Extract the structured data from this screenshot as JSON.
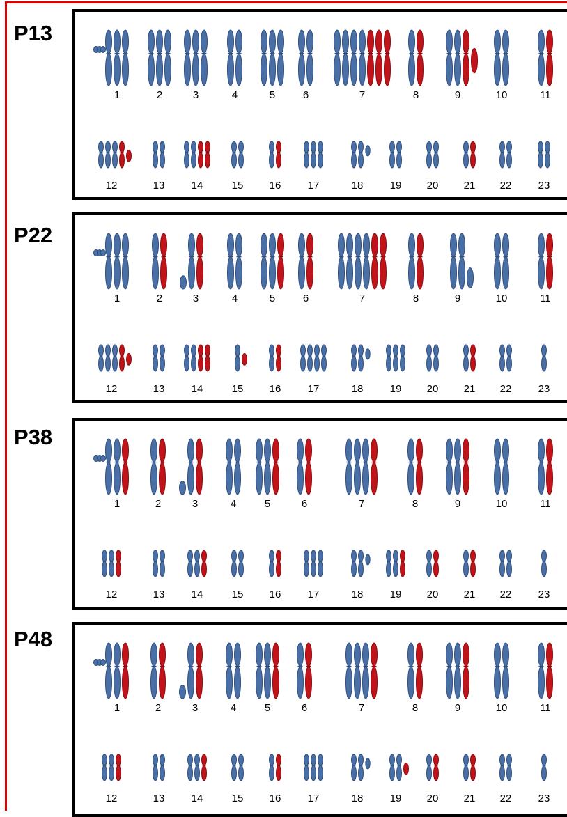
{
  "colors": {
    "border_red": "#e00000",
    "chromosome_blue": "#4a6fa5",
    "chromosome_blue_stroke": "#2f4f80",
    "chromosome_red": "#c0141a",
    "chromosome_red_stroke": "#8a0d12",
    "box_border": "#000000"
  },
  "panels": [
    {
      "label": "P13",
      "rows": [
        [
          {
            "n": "1",
            "full": [
              1,
              1,
              1
            ],
            "dots": true
          },
          {
            "n": "2",
            "full": [
              1,
              1,
              1
            ]
          },
          {
            "n": "3",
            "full": [
              1,
              1,
              1
            ]
          },
          {
            "n": "4",
            "full": [
              1,
              1
            ]
          },
          {
            "n": "5",
            "full": [
              1,
              1,
              1
            ]
          },
          {
            "n": "6",
            "full": [
              1,
              1
            ]
          },
          {
            "n": "7",
            "full": [
              1,
              1,
              1,
              1,
              2,
              2,
              2
            ]
          },
          {
            "n": "8",
            "full": [
              1,
              2
            ]
          },
          {
            "n": "9",
            "full": [
              1,
              1,
              2
            ],
            "tail": "short-red"
          },
          {
            "n": "10",
            "full": [
              1,
              1
            ]
          },
          {
            "n": "11",
            "full": [
              1,
              2
            ]
          }
        ],
        [
          {
            "n": "12",
            "full": [
              1,
              1,
              1,
              2
            ],
            "tail": "short-red"
          },
          {
            "n": "13",
            "full": [
              1,
              1
            ]
          },
          {
            "n": "14",
            "full": [
              1,
              1,
              2,
              2
            ]
          },
          {
            "n": "15",
            "full": [
              1,
              1
            ]
          },
          {
            "n": "16",
            "full": [
              1,
              2
            ]
          },
          {
            "n": "17",
            "full": [
              1,
              1,
              1
            ]
          },
          {
            "n": "18",
            "full": [
              1,
              1
            ],
            "tail": "tiny-blue"
          },
          {
            "n": "19",
            "full": [
              1,
              1
            ]
          },
          {
            "n": "20",
            "full": [
              1,
              1
            ]
          },
          {
            "n": "21",
            "full": [
              1,
              2
            ]
          },
          {
            "n": "22",
            "full": [
              1,
              1
            ]
          },
          {
            "n": "23",
            "full": [
              1,
              1
            ]
          }
        ]
      ]
    },
    {
      "label": "P22",
      "rows": [
        [
          {
            "n": "1",
            "full": [
              1,
              1,
              1
            ],
            "dots": true
          },
          {
            "n": "2",
            "full": [
              1,
              2
            ]
          },
          {
            "n": "3",
            "full": [
              1,
              2
            ],
            "tail": "ball-blue"
          },
          {
            "n": "4",
            "full": [
              1,
              1
            ]
          },
          {
            "n": "5",
            "full": [
              1,
              1,
              2
            ]
          },
          {
            "n": "6",
            "full": [
              1,
              2
            ]
          },
          {
            "n": "7",
            "full": [
              1,
              1,
              1,
              1,
              2,
              2
            ]
          },
          {
            "n": "8",
            "full": [
              1,
              2
            ]
          },
          {
            "n": "9",
            "full": [
              1,
              1
            ],
            "tail": "short-blue"
          },
          {
            "n": "10",
            "full": [
              1,
              1
            ]
          },
          {
            "n": "11",
            "full": [
              1,
              2
            ]
          }
        ],
        [
          {
            "n": "12",
            "full": [
              1,
              1,
              1,
              2
            ],
            "tail": "short-red"
          },
          {
            "n": "13",
            "full": [
              1,
              1
            ]
          },
          {
            "n": "14",
            "full": [
              1,
              1,
              2,
              2
            ]
          },
          {
            "n": "15",
            "full": [
              1
            ],
            "tail": "short-red"
          },
          {
            "n": "16",
            "full": [
              1,
              2
            ]
          },
          {
            "n": "17",
            "full": [
              1,
              1,
              1,
              1
            ]
          },
          {
            "n": "18",
            "full": [
              1,
              1
            ],
            "tail": "tiny-blue"
          },
          {
            "n": "19",
            "full": [
              1,
              1,
              1
            ]
          },
          {
            "n": "20",
            "full": [
              1,
              1
            ]
          },
          {
            "n": "21",
            "full": [
              1,
              2
            ]
          },
          {
            "n": "22",
            "full": [
              1,
              1
            ]
          },
          {
            "n": "23",
            "full": [
              1
            ]
          }
        ]
      ]
    },
    {
      "label": "P38",
      "rows": [
        [
          {
            "n": "1",
            "full": [
              1,
              1,
              2
            ],
            "dots": true
          },
          {
            "n": "2",
            "full": [
              1,
              2
            ]
          },
          {
            "n": "3",
            "full": [
              1,
              2
            ],
            "tail": "ball-blue"
          },
          {
            "n": "4",
            "full": [
              1,
              1
            ]
          },
          {
            "n": "5",
            "full": [
              1,
              1,
              2
            ]
          },
          {
            "n": "6",
            "full": [
              1,
              2
            ]
          },
          {
            "n": "7",
            "full": [
              1,
              1,
              1,
              2
            ]
          },
          {
            "n": "8",
            "full": [
              1,
              2
            ]
          },
          {
            "n": "9",
            "full": [
              1,
              1,
              2
            ]
          },
          {
            "n": "10",
            "full": [
              1,
              1
            ]
          },
          {
            "n": "11",
            "full": [
              1,
              2
            ]
          }
        ],
        [
          {
            "n": "12",
            "full": [
              1,
              1,
              2
            ]
          },
          {
            "n": "13",
            "full": [
              1,
              1
            ]
          },
          {
            "n": "14",
            "full": [
              1,
              1,
              2
            ]
          },
          {
            "n": "15",
            "full": [
              1,
              1
            ]
          },
          {
            "n": "16",
            "full": [
              1,
              2
            ]
          },
          {
            "n": "17",
            "full": [
              1,
              1,
              1
            ]
          },
          {
            "n": "18",
            "full": [
              1,
              1
            ],
            "tail": "tiny-blue"
          },
          {
            "n": "19",
            "full": [
              1,
              1,
              2
            ]
          },
          {
            "n": "20",
            "full": [
              1,
              2
            ]
          },
          {
            "n": "21",
            "full": [
              1,
              2
            ]
          },
          {
            "n": "22",
            "full": [
              1,
              1
            ]
          },
          {
            "n": "23",
            "full": [
              1
            ]
          }
        ]
      ]
    },
    {
      "label": "P48",
      "rows": [
        [
          {
            "n": "1",
            "full": [
              1,
              1,
              2
            ],
            "dots": true
          },
          {
            "n": "2",
            "full": [
              1,
              2
            ]
          },
          {
            "n": "3",
            "full": [
              1,
              2
            ],
            "tail": "ball-blue"
          },
          {
            "n": "4",
            "full": [
              1,
              1
            ]
          },
          {
            "n": "5",
            "full": [
              1,
              1,
              2
            ]
          },
          {
            "n": "6",
            "full": [
              1,
              2
            ]
          },
          {
            "n": "7",
            "full": [
              1,
              1,
              1,
              2
            ]
          },
          {
            "n": "8",
            "full": [
              1,
              2
            ]
          },
          {
            "n": "9",
            "full": [
              1,
              1,
              2
            ]
          },
          {
            "n": "10",
            "full": [
              1,
              1
            ]
          },
          {
            "n": "11",
            "full": [
              1,
              2
            ]
          }
        ],
        [
          {
            "n": "12",
            "full": [
              1,
              1,
              2
            ]
          },
          {
            "n": "13",
            "full": [
              1,
              1
            ]
          },
          {
            "n": "14",
            "full": [
              1,
              1,
              2
            ]
          },
          {
            "n": "15",
            "full": [
              1,
              1
            ]
          },
          {
            "n": "16",
            "full": [
              1,
              2
            ]
          },
          {
            "n": "17",
            "full": [
              1,
              1,
              1
            ]
          },
          {
            "n": "18",
            "full": [
              1,
              1
            ],
            "tail": "tiny-blue"
          },
          {
            "n": "19",
            "full": [
              1,
              1
            ],
            "tail": "short-red"
          },
          {
            "n": "20",
            "full": [
              1,
              2
            ]
          },
          {
            "n": "21",
            "full": [
              1,
              2
            ]
          },
          {
            "n": "22",
            "full": [
              1,
              1
            ]
          },
          {
            "n": "23",
            "full": [
              1
            ]
          }
        ]
      ]
    }
  ]
}
